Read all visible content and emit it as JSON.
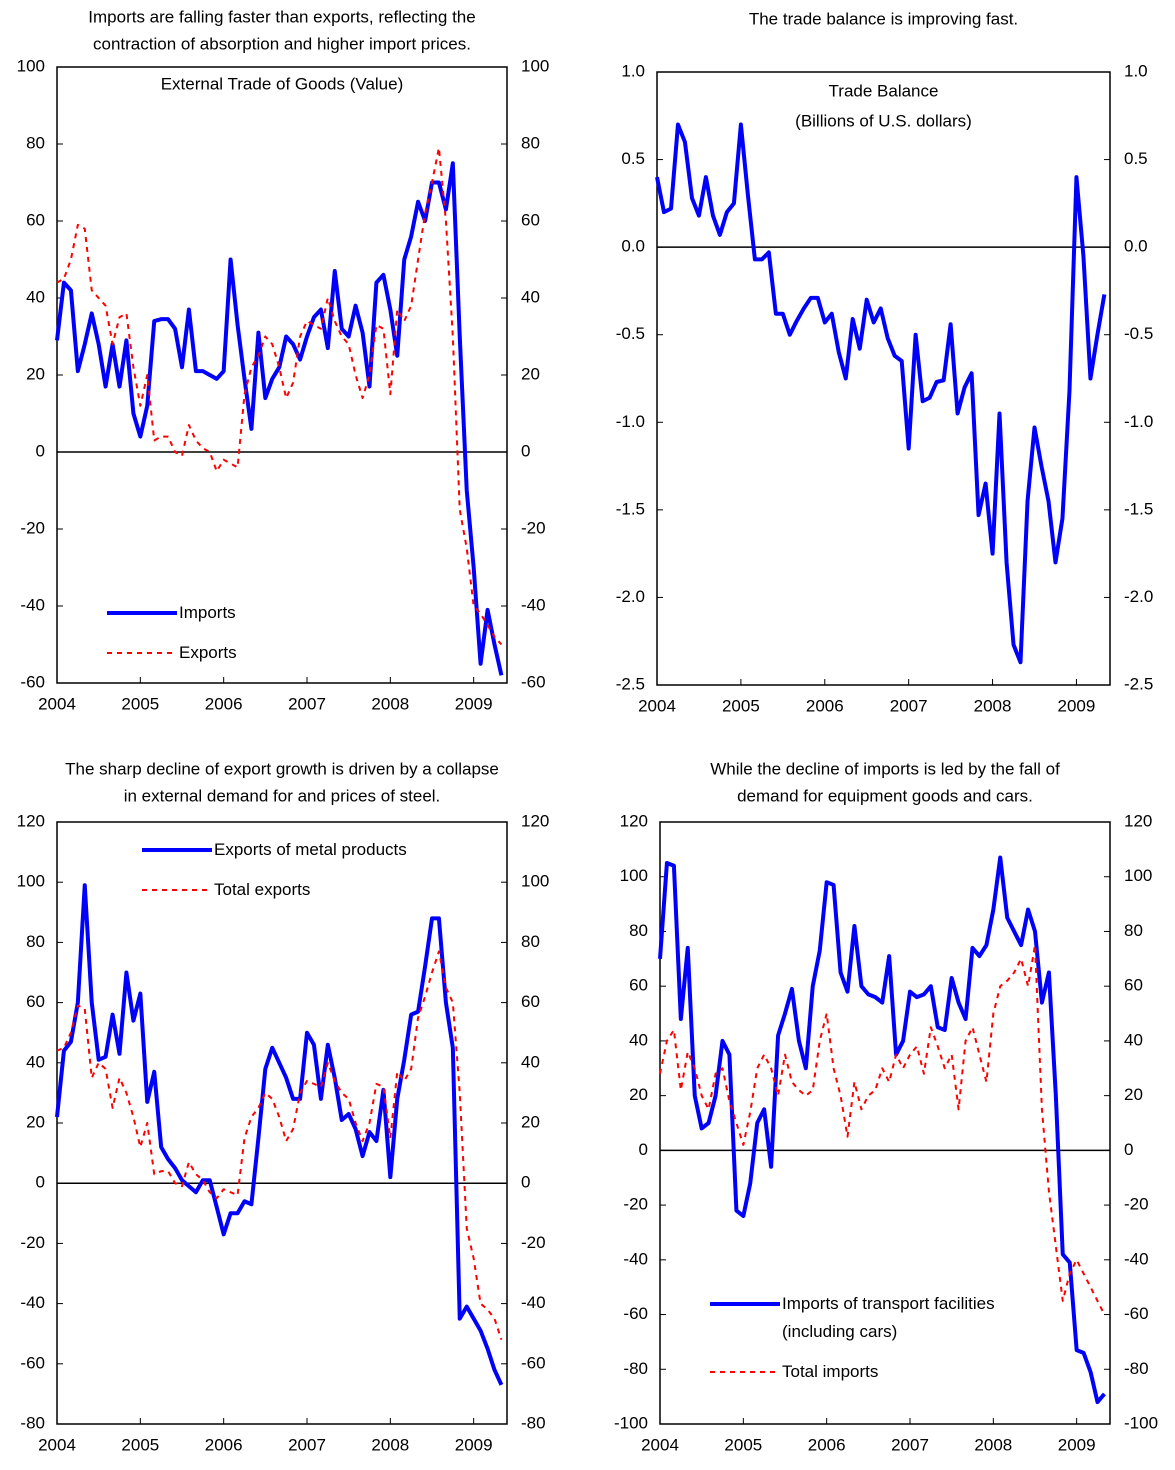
{
  "chart_data": [
    {
      "type": "line",
      "title": [
        "Imports are falling faster than exports, reflecting the",
        "contraction of absorption and higher import prices."
      ],
      "subtitle": [
        "External Trade of Goods (Value)"
      ],
      "x": [
        2004,
        2004.083,
        2004.167,
        2004.25,
        2004.333,
        2004.417,
        2004.5,
        2004.583,
        2004.667,
        2004.75,
        2004.833,
        2004.917,
        2005,
        2005.083,
        2005.167,
        2005.25,
        2005.333,
        2005.417,
        2005.5,
        2005.583,
        2005.667,
        2005.75,
        2005.833,
        2005.917,
        2006,
        2006.083,
        2006.167,
        2006.25,
        2006.333,
        2006.417,
        2006.5,
        2006.583,
        2006.667,
        2006.75,
        2006.833,
        2006.917,
        2007,
        2007.083,
        2007.167,
        2007.25,
        2007.333,
        2007.417,
        2007.5,
        2007.583,
        2007.667,
        2007.75,
        2007.833,
        2007.917,
        2008,
        2008.083,
        2008.167,
        2008.25,
        2008.333,
        2008.417,
        2008.5,
        2008.583,
        2008.667,
        2008.75,
        2008.833,
        2008.917,
        2009,
        2009.083,
        2009.167,
        2009.25,
        2009.333
      ],
      "series": [
        {
          "name": "Imports",
          "color": "#0000ff",
          "dashed": false,
          "values": [
            29,
            44,
            42,
            21,
            28,
            36,
            28,
            17,
            28,
            17,
            29,
            10,
            4,
            12,
            34,
            34.5,
            34.5,
            32,
            22,
            37,
            21,
            21,
            20,
            19,
            21,
            50,
            33,
            19,
            6,
            31,
            14,
            19,
            22,
            30,
            28,
            24,
            30,
            35,
            37,
            27,
            47,
            32,
            30,
            38,
            31,
            17,
            44,
            46,
            37,
            25,
            50,
            56,
            65,
            60,
            70,
            70,
            63,
            75,
            30,
            -10,
            -30,
            -55,
            -41,
            -50,
            -58
          ]
        },
        {
          "name": "Exports",
          "color": "#ff0000",
          "dashed": true,
          "values": [
            44,
            45,
            50,
            59,
            58,
            42,
            40,
            38,
            28,
            35,
            36,
            22,
            12,
            20,
            3,
            4,
            4,
            0,
            -1,
            7,
            3,
            1,
            0,
            -5,
            -2,
            -3,
            -4,
            15,
            22,
            25,
            30,
            28,
            22,
            14,
            18,
            30,
            34,
            33,
            32,
            40,
            34,
            30,
            28,
            20,
            14,
            20,
            33,
            32,
            15,
            37,
            34,
            38,
            50,
            62,
            70,
            79,
            60,
            30,
            -15,
            -25,
            -40,
            -42,
            -45,
            -48,
            -50
          ]
        }
      ],
      "xlim": [
        2004,
        2009.4
      ],
      "xticks": [
        2004,
        2005,
        2006,
        2007,
        2008,
        2009
      ],
      "ylim": [
        -60,
        100
      ],
      "yticks": [
        -60,
        -40,
        -20,
        0,
        20,
        40,
        60,
        80,
        100
      ],
      "legend": "lower left"
    },
    {
      "type": "line",
      "title": [
        "The trade balance is improving fast."
      ],
      "subtitle": [
        "Trade Balance",
        "(Billions of U.S. dollars)"
      ],
      "x": [
        2004,
        2004.083,
        2004.167,
        2004.25,
        2004.333,
        2004.417,
        2004.5,
        2004.583,
        2004.667,
        2004.75,
        2004.833,
        2004.917,
        2005,
        2005.083,
        2005.167,
        2005.25,
        2005.333,
        2005.417,
        2005.5,
        2005.583,
        2005.667,
        2005.75,
        2005.833,
        2005.917,
        2006,
        2006.083,
        2006.167,
        2006.25,
        2006.333,
        2006.417,
        2006.5,
        2006.583,
        2006.667,
        2006.75,
        2006.833,
        2006.917,
        2007,
        2007.083,
        2007.167,
        2007.25,
        2007.333,
        2007.417,
        2007.5,
        2007.583,
        2007.667,
        2007.75,
        2007.833,
        2007.917,
        2008,
        2008.083,
        2008.167,
        2008.25,
        2008.333,
        2008.417,
        2008.5,
        2008.583,
        2008.667,
        2008.75,
        2008.833,
        2008.917,
        2009,
        2009.083,
        2009.167,
        2009.25,
        2009.333
      ],
      "series": [
        {
          "color": "#0000ff",
          "dashed": false,
          "values": [
            0.4,
            0.2,
            0.22,
            0.7,
            0.6,
            0.28,
            0.18,
            0.4,
            0.18,
            0.07,
            0.2,
            0.25,
            0.7,
            0.3,
            -0.07,
            -0.07,
            -0.03,
            -0.38,
            -0.38,
            -0.5,
            -0.42,
            -0.35,
            -0.29,
            -0.29,
            -0.43,
            -0.38,
            -0.6,
            -0.75,
            -0.41,
            -0.58,
            -0.3,
            -0.43,
            -0.35,
            -0.52,
            -0.62,
            -0.65,
            -1.15,
            -0.5,
            -0.88,
            -0.86,
            -0.77,
            -0.76,
            -0.44,
            -0.95,
            -0.8,
            -0.72,
            -1.53,
            -1.35,
            -1.75,
            -0.95,
            -1.8,
            -2.27,
            -2.37,
            -1.45,
            -1.03,
            -1.25,
            -1.45,
            -1.8,
            -1.55,
            -0.82,
            0.4,
            -0.05,
            -0.75,
            -0.5,
            -0.27
          ]
        }
      ],
      "xlim": [
        2004,
        2009.4
      ],
      "xticks": [
        2004,
        2005,
        2006,
        2007,
        2008,
        2009
      ],
      "ylim": [
        -2.5,
        1
      ],
      "yticks": [
        -2.5,
        {
          "value": -2,
          "label": "-2.0"
        },
        -1.5,
        {
          "value": -1,
          "label": "-1.0"
        },
        -0.5,
        {
          "value": 0,
          "label": "0.0"
        },
        0.5,
        {
          "value": 1,
          "label": "1.0"
        }
      ]
    },
    {
      "type": "line",
      "title": [
        "The sharp decline of export growth is driven by a collapse",
        "in external demand for and prices of steel."
      ],
      "x": [
        2004,
        2004.083,
        2004.167,
        2004.25,
        2004.333,
        2004.417,
        2004.5,
        2004.583,
        2004.667,
        2004.75,
        2004.833,
        2004.917,
        2005,
        2005.083,
        2005.167,
        2005.25,
        2005.333,
        2005.417,
        2005.5,
        2005.583,
        2005.667,
        2005.75,
        2005.833,
        2005.917,
        2006,
        2006.083,
        2006.167,
        2006.25,
        2006.333,
        2006.417,
        2006.5,
        2006.583,
        2006.667,
        2006.75,
        2006.833,
        2006.917,
        2007,
        2007.083,
        2007.167,
        2007.25,
        2007.333,
        2007.417,
        2007.5,
        2007.583,
        2007.667,
        2007.75,
        2007.833,
        2007.917,
        2008,
        2008.083,
        2008.167,
        2008.25,
        2008.333,
        2008.417,
        2008.5,
        2008.583,
        2008.667,
        2008.75,
        2008.833,
        2008.917,
        2009,
        2009.083,
        2009.167,
        2009.25,
        2009.333
      ],
      "series": [
        {
          "name": "Exports of metal products",
          "color": "#0000ff",
          "dashed": false,
          "values": [
            22,
            44,
            47,
            60,
            99,
            60,
            41,
            42,
            56,
            43,
            70,
            54,
            63,
            27,
            37,
            12,
            8,
            5,
            1,
            -1,
            -3,
            1,
            1,
            -8,
            -17,
            -10,
            -10,
            -6,
            -7,
            15,
            38,
            45,
            40,
            35,
            28,
            28,
            50,
            46,
            28,
            46,
            35,
            21,
            23,
            18,
            9,
            17,
            14,
            31,
            2,
            28,
            41,
            56,
            57,
            72,
            88,
            88,
            60,
            45,
            -45,
            -41,
            -45,
            -49,
            -55,
            -62,
            -67
          ]
        },
        {
          "name": "Total exports",
          "color": "#ff0000",
          "dashed": true,
          "values": [
            44,
            45,
            50,
            59,
            58,
            35,
            40,
            38,
            25,
            35,
            30,
            22,
            12,
            20,
            3,
            4,
            4,
            0,
            -1,
            7,
            3,
            1,
            -3,
            -5,
            -2,
            -3,
            -4,
            15,
            22,
            25,
            30,
            28,
            22,
            14,
            18,
            30,
            34,
            33,
            32,
            40,
            34,
            30,
            28,
            20,
            14,
            20,
            33,
            32,
            15,
            37,
            34,
            38,
            55,
            62,
            70,
            77,
            65,
            60,
            30,
            -15,
            -25,
            -40,
            -42,
            -45,
            -52
          ]
        }
      ],
      "xlim": [
        2004,
        2009.4
      ],
      "xticks": [
        2004,
        2005,
        2006,
        2007,
        2008,
        2009
      ],
      "ylim": [
        -80,
        120
      ],
      "yticks": [
        -80,
        -60,
        -40,
        -20,
        0,
        20,
        40,
        60,
        80,
        100,
        120
      ],
      "legend": "upper center"
    },
    {
      "type": "line",
      "title": [
        "While the decline of imports is led by the fall of",
        "demand for equipment goods and cars."
      ],
      "x": [
        2004,
        2004.083,
        2004.167,
        2004.25,
        2004.333,
        2004.417,
        2004.5,
        2004.583,
        2004.667,
        2004.75,
        2004.833,
        2004.917,
        2005,
        2005.083,
        2005.167,
        2005.25,
        2005.333,
        2005.417,
        2005.5,
        2005.583,
        2005.667,
        2005.75,
        2005.833,
        2005.917,
        2006,
        2006.083,
        2006.167,
        2006.25,
        2006.333,
        2006.417,
        2006.5,
        2006.583,
        2006.667,
        2006.75,
        2006.833,
        2006.917,
        2007,
        2007.083,
        2007.167,
        2007.25,
        2007.333,
        2007.417,
        2007.5,
        2007.583,
        2007.667,
        2007.75,
        2007.833,
        2007.917,
        2008,
        2008.083,
        2008.167,
        2008.25,
        2008.333,
        2008.417,
        2008.5,
        2008.583,
        2008.667,
        2008.75,
        2008.833,
        2008.917,
        2009,
        2009.083,
        2009.167,
        2009.25,
        2009.333
      ],
      "series": [
        {
          "name": "Imports of transport facilities\n(including cars)",
          "color": "#0000ff",
          "dashed": false,
          "values": [
            70,
            105,
            104,
            48,
            74,
            20,
            8,
            10,
            20,
            40,
            35,
            -22,
            -24,
            -12,
            10,
            15,
            -6,
            42,
            50,
            59,
            40,
            30,
            60,
            73,
            98,
            97,
            65,
            58,
            82,
            60,
            57,
            56,
            54,
            71,
            35,
            40,
            58,
            56,
            57,
            60,
            45,
            44,
            63,
            54,
            48,
            74,
            71,
            75,
            88,
            107,
            85,
            80,
            75,
            88,
            80,
            54,
            65,
            20,
            -38,
            -41,
            -73,
            -74,
            -81,
            -92,
            -89
          ]
        },
        {
          "name": "Total imports",
          "color": "#ff0000",
          "dashed": true,
          "values": [
            28,
            40,
            44,
            22,
            36,
            30,
            20,
            15,
            28,
            30,
            18,
            10,
            2,
            14,
            30,
            35,
            30,
            20,
            35,
            25,
            22,
            20,
            22,
            40,
            50,
            30,
            20,
            5,
            25,
            15,
            20,
            22,
            30,
            25,
            35,
            30,
            35,
            38,
            28,
            45,
            38,
            30,
            35,
            15,
            40,
            45,
            35,
            25,
            50,
            60,
            62,
            65,
            70,
            60,
            75,
            15,
            -15,
            -35,
            -55,
            -45,
            -40,
            -45,
            -50,
            -55,
            -60
          ]
        }
      ],
      "xlim": [
        2004,
        2009.4
      ],
      "xticks": [
        2004,
        2005,
        2006,
        2007,
        2008,
        2009
      ],
      "ylim": [
        -100,
        120
      ],
      "yticks": [
        -100,
        -80,
        -60,
        -40,
        -20,
        0,
        20,
        40,
        60,
        80,
        100,
        120
      ],
      "legend": "lower left"
    }
  ]
}
